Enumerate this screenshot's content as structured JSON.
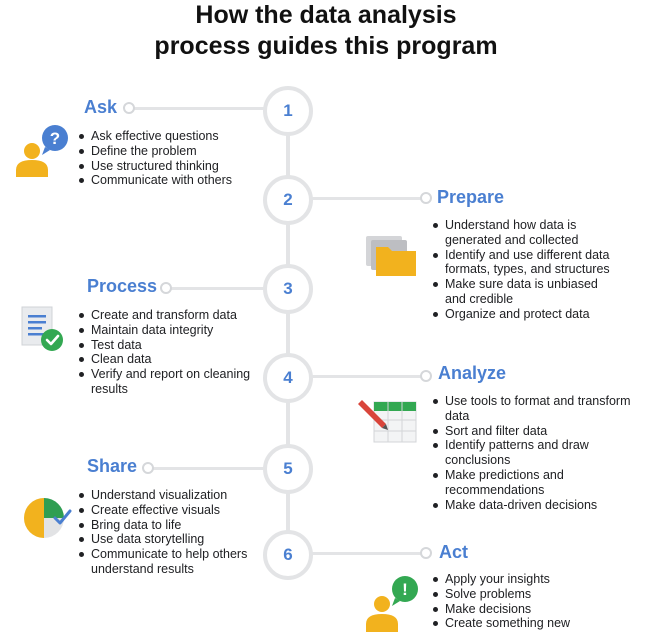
{
  "title": {
    "line1": "How the data analysis",
    "line2": "process guides this program"
  },
  "steps": [
    {
      "number": "1",
      "name": "Ask",
      "icon": "person-question-icon",
      "points": [
        "Ask effective questions",
        "Define the problem",
        "Use structured thinking",
        "Communicate with others"
      ]
    },
    {
      "number": "2",
      "name": "Prepare",
      "icon": "folder-stack-icon",
      "points": [
        "Understand how data is generated and collected",
        "Identify and use different data formats, types, and structures",
        "Make sure data is unbiased and credible",
        "Organize and protect data"
      ]
    },
    {
      "number": "3",
      "name": "Process",
      "icon": "document-check-icon",
      "points": [
        "Create and transform data",
        "Maintain data integrity",
        "Test data",
        "Clean data",
        "Verify and report on cleaning results"
      ]
    },
    {
      "number": "4",
      "name": "Analyze",
      "icon": "spreadsheet-pencil-icon",
      "points": [
        "Use tools to format and transform data",
        "Sort and filter data",
        "Identify patterns and draw conclusions",
        "Make predictions and recommendations",
        "Make data-driven decisions"
      ]
    },
    {
      "number": "5",
      "name": "Share",
      "icon": "pie-chart-check-icon",
      "points": [
        "Understand visualization",
        "Create effective visuals",
        "Bring data to life",
        "Use data storytelling",
        "Communicate to help others understand results"
      ]
    },
    {
      "number": "6",
      "name": "Act",
      "icon": "person-exclamation-icon",
      "points": [
        "Apply your insights",
        "Solve problems",
        "Make decisions",
        "Create something new"
      ]
    }
  ],
  "colors": {
    "accent": "#4a7fd1",
    "line": "#e3e4e6",
    "person": "#f2b21e",
    "bubble_blue": "#4a7fd1",
    "bubble_green": "#33a852",
    "folder": "#f2b21e",
    "check_green": "#33a852",
    "pencil_red": "#d9453b",
    "pie_green": "#2f9e52",
    "pie_yellow": "#f2b21e",
    "pie_gray": "#e2e3e5"
  }
}
